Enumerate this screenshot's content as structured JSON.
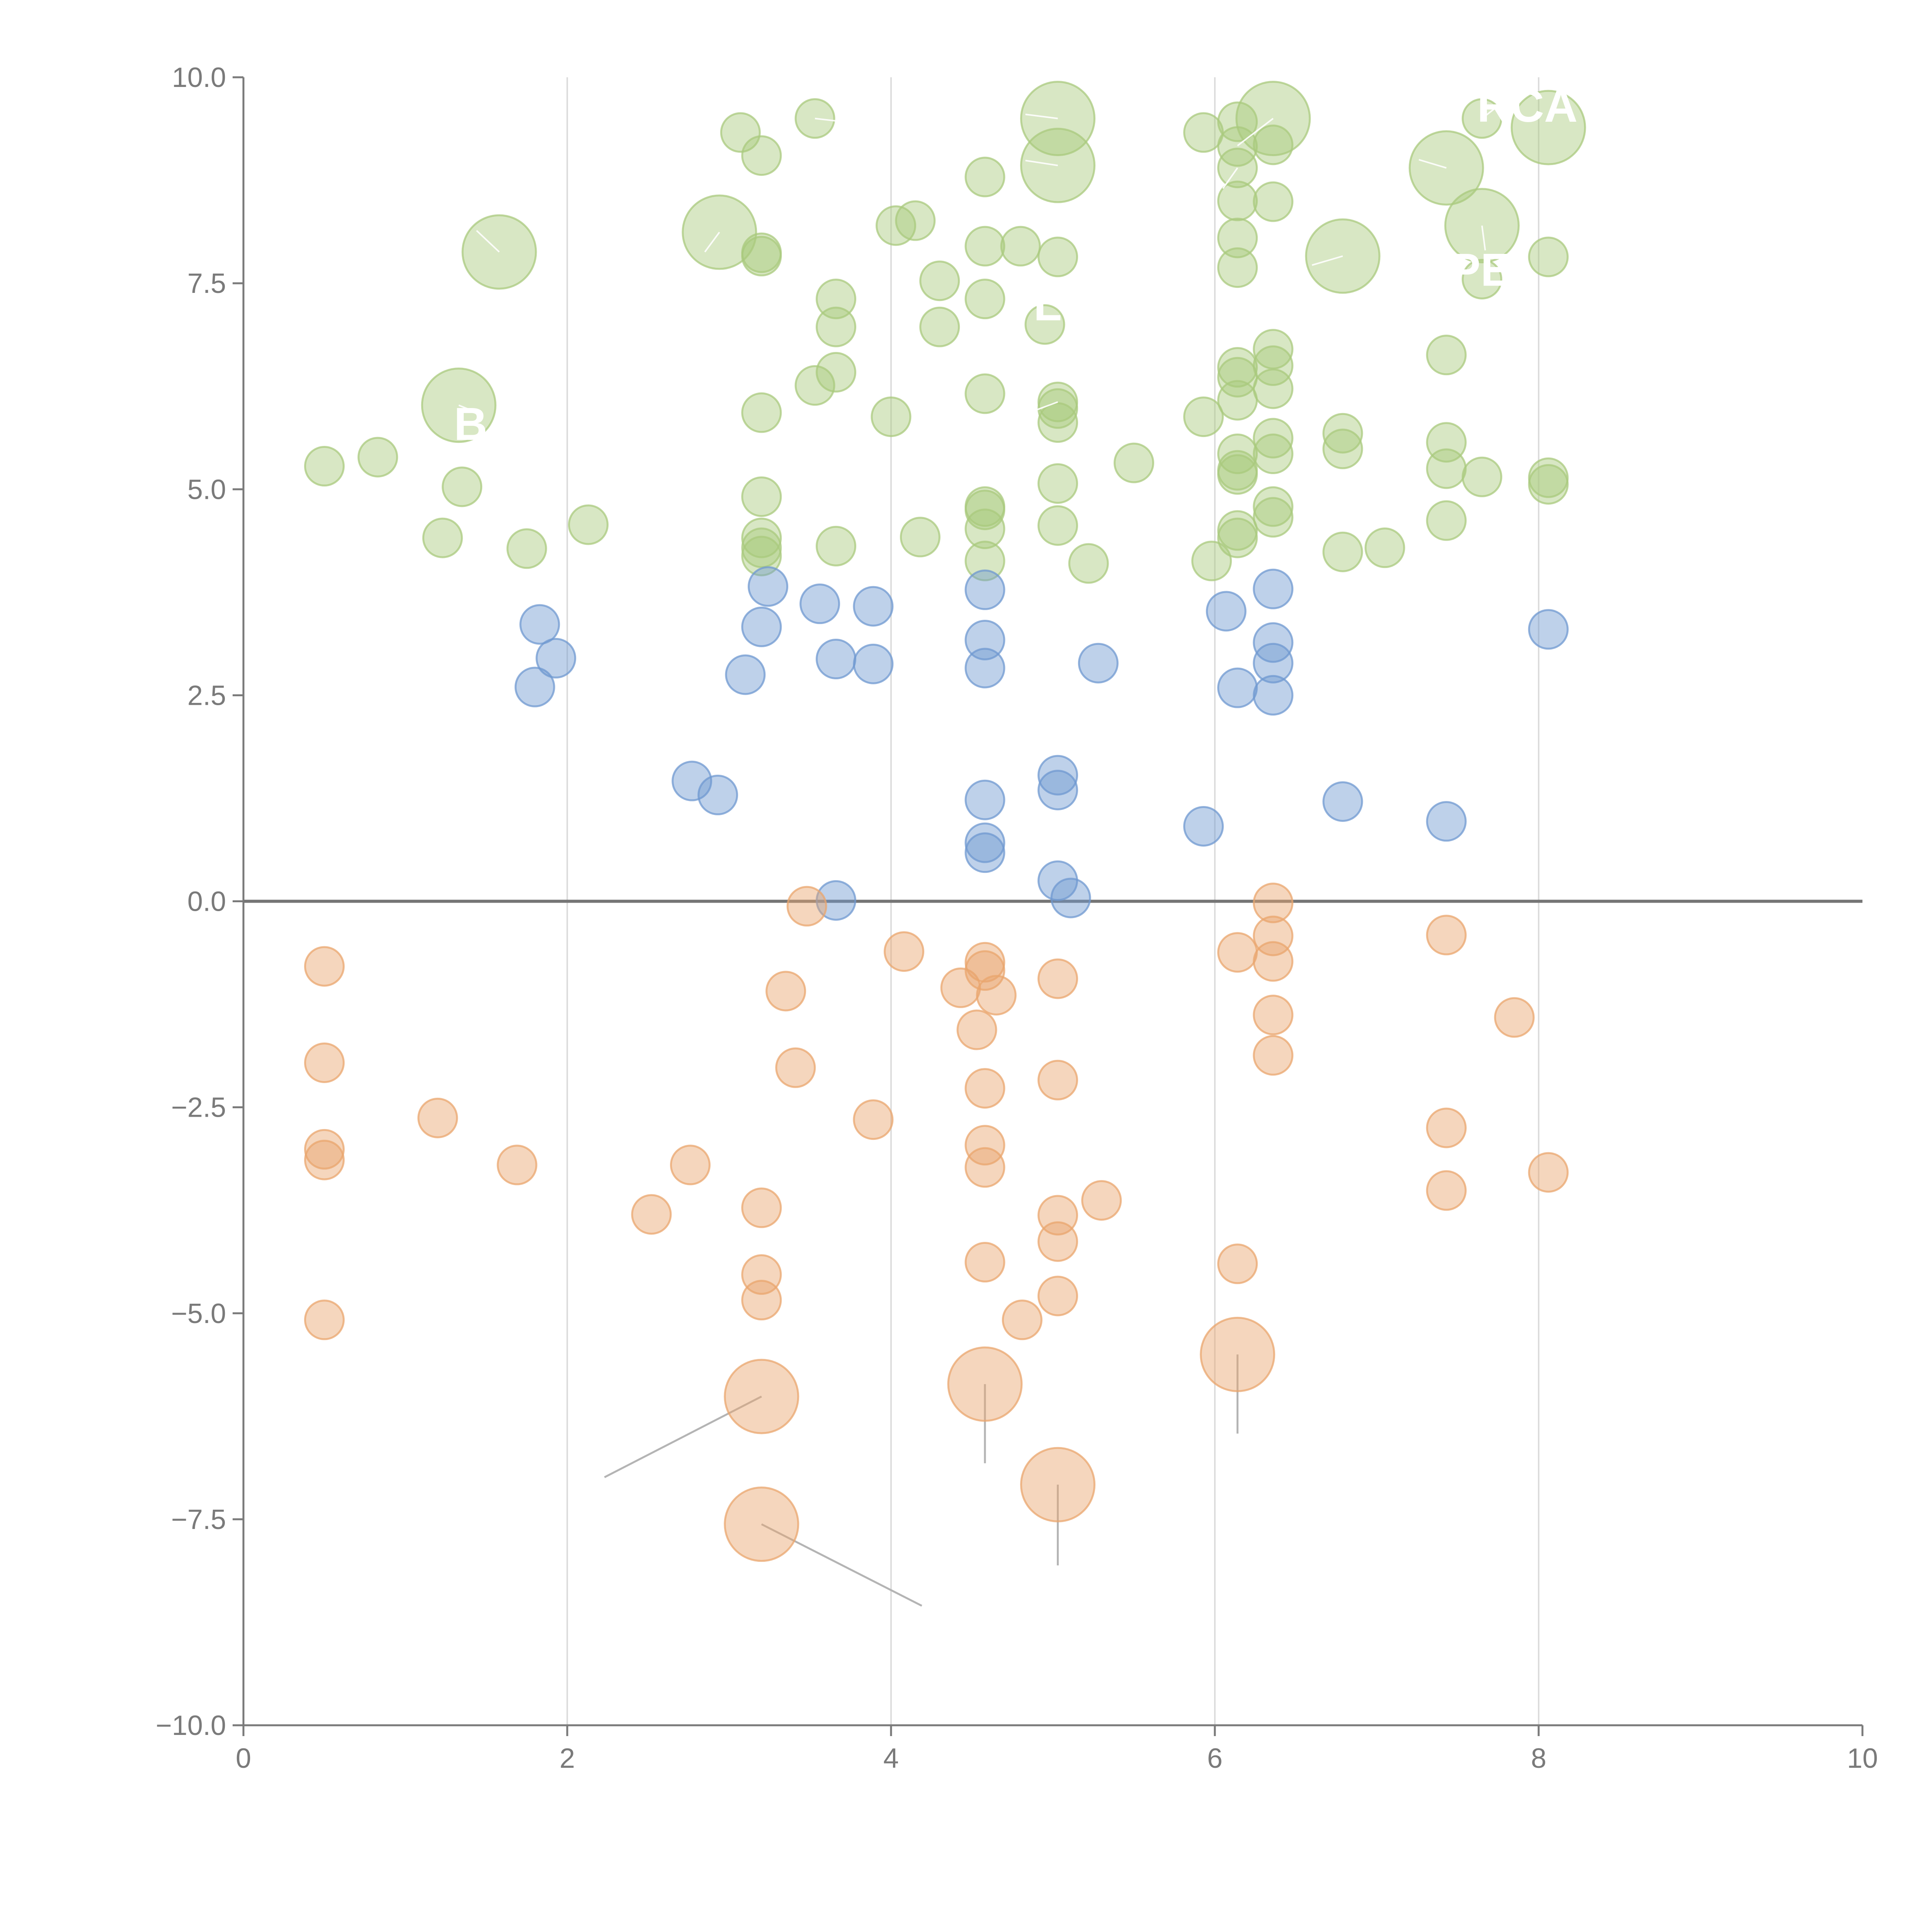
{
  "chart_data": {
    "type": "scatter",
    "title": "",
    "xlabel": "",
    "ylabel": "",
    "xlim": [
      0,
      10
    ],
    "ylim": [
      -10,
      10
    ],
    "x_ticks": [
      "0",
      "2",
      "4",
      "6",
      "8",
      "10"
    ],
    "y_ticks": [
      "10.0",
      "7.5",
      "5.0",
      "2.5",
      "0.0",
      "−2.5",
      "−5.0",
      "−7.5",
      "−10.0"
    ],
    "x_tick_values": [
      0,
      2,
      4,
      6,
      8,
      10
    ],
    "y_tick_values": [
      10,
      7.5,
      5,
      2.5,
      0,
      -2.5,
      -5,
      -7.5,
      -10
    ],
    "vertical_gridlines": [
      2,
      4,
      6,
      8
    ],
    "horizontal_reference_line": 0,
    "grid": true,
    "legend": "none",
    "marker_opacity": 0.45,
    "series": [
      {
        "color": "#a9c97d",
        "points": [
          [
            0.5,
            5.28
          ],
          [
            0.83,
            5.39
          ],
          [
            1.23,
            4.41
          ],
          [
            1.35,
            5.03
          ],
          [
            1.75,
            4.28
          ],
          [
            2.13,
            4.57
          ],
          [
            3.07,
            9.33
          ],
          [
            3.2,
            9.05
          ],
          [
            3.53,
            9.5
          ],
          [
            3.2,
            7.87
          ],
          [
            3.2,
            7.83
          ],
          [
            3.2,
            5.93
          ],
          [
            3.2,
            4.91
          ],
          [
            3.2,
            4.41
          ],
          [
            3.2,
            4.29
          ],
          [
            3.2,
            4.19
          ],
          [
            3.53,
            6.26
          ],
          [
            3.66,
            7.31
          ],
          [
            3.66,
            6.97
          ],
          [
            3.66,
            6.42
          ],
          [
            3.66,
            4.31
          ],
          [
            4.0,
            5.88
          ],
          [
            4.03,
            8.2
          ],
          [
            4.15,
            8.26
          ],
          [
            4.18,
            4.42
          ],
          [
            4.3,
            7.53
          ],
          [
            4.3,
            6.97
          ],
          [
            4.58,
            8.79
          ],
          [
            4.58,
            7.95
          ],
          [
            4.58,
            7.31
          ],
          [
            4.58,
            6.16
          ],
          [
            4.58,
            4.79
          ],
          [
            4.58,
            4.75
          ],
          [
            4.58,
            4.52
          ],
          [
            4.58,
            4.13
          ],
          [
            4.8,
            7.95
          ],
          [
            4.95,
            7.0
          ],
          [
            5.03,
            7.82
          ],
          [
            5.03,
            6.06
          ],
          [
            5.03,
            5.98
          ],
          [
            5.03,
            5.81
          ],
          [
            5.03,
            5.07
          ],
          [
            5.03,
            4.56
          ],
          [
            5.22,
            4.1
          ],
          [
            5.5,
            5.32
          ],
          [
            5.93,
            9.33
          ],
          [
            5.93,
            5.88
          ],
          [
            5.98,
            4.13
          ],
          [
            6.14,
            9.46
          ],
          [
            6.14,
            9.16
          ],
          [
            6.14,
            8.9
          ],
          [
            6.14,
            8.5
          ],
          [
            6.14,
            8.05
          ],
          [
            6.14,
            7.69
          ],
          [
            6.14,
            6.48
          ],
          [
            6.14,
            6.36
          ],
          [
            6.14,
            6.08
          ],
          [
            6.14,
            5.43
          ],
          [
            6.14,
            5.23
          ],
          [
            6.14,
            5.18
          ],
          [
            6.14,
            4.5
          ],
          [
            6.14,
            4.41
          ],
          [
            6.36,
            9.18
          ],
          [
            6.36,
            8.49
          ],
          [
            6.36,
            6.7
          ],
          [
            6.36,
            6.5
          ],
          [
            6.36,
            6.22
          ],
          [
            6.36,
            5.62
          ],
          [
            6.36,
            5.43
          ],
          [
            6.36,
            4.79
          ],
          [
            6.36,
            4.66
          ],
          [
            6.79,
            5.68
          ],
          [
            6.79,
            5.49
          ],
          [
            6.79,
            4.24
          ],
          [
            7.05,
            4.29
          ],
          [
            7.43,
            6.63
          ],
          [
            7.43,
            5.57
          ],
          [
            7.43,
            5.25
          ],
          [
            7.43,
            4.62
          ],
          [
            7.65,
            9.5
          ],
          [
            7.65,
            5.15
          ],
          [
            7.65,
            7.55
          ],
          [
            8.06,
            7.82
          ],
          [
            8.06,
            5.14
          ],
          [
            8.06,
            5.06
          ]
        ],
        "large_points": [
          [
            1.58,
            7.88
          ],
          [
            1.33,
            6.02
          ],
          [
            2.94,
            8.12
          ],
          [
            5.03,
            9.5
          ],
          [
            5.03,
            8.93
          ],
          [
            6.36,
            9.5
          ],
          [
            6.79,
            7.83
          ],
          [
            7.43,
            8.9
          ],
          [
            7.65,
            8.2
          ],
          [
            8.06,
            9.39
          ]
        ]
      },
      {
        "color": "#6f98d0",
        "points": [
          [
            1.83,
            3.36
          ],
          [
            1.93,
            2.95
          ],
          [
            1.8,
            2.6
          ],
          [
            2.77,
            1.46
          ],
          [
            2.93,
            1.29
          ],
          [
            3.1,
            2.75
          ],
          [
            3.2,
            3.33
          ],
          [
            3.24,
            3.82
          ],
          [
            3.56,
            3.61
          ],
          [
            3.66,
            2.94
          ],
          [
            3.66,
            0.01
          ],
          [
            3.89,
            3.58
          ],
          [
            3.89,
            2.88
          ],
          [
            4.58,
            3.78
          ],
          [
            4.58,
            3.17
          ],
          [
            4.58,
            2.83
          ],
          [
            4.58,
            1.23
          ],
          [
            4.58,
            0.71
          ],
          [
            4.58,
            0.59
          ],
          [
            5.03,
            1.53
          ],
          [
            5.03,
            1.35
          ],
          [
            5.03,
            0.25
          ],
          [
            5.11,
            0.04
          ],
          [
            5.28,
            2.89
          ],
          [
            5.93,
            0.91
          ],
          [
            6.07,
            3.52
          ],
          [
            6.14,
            2.59
          ],
          [
            6.36,
            3.79
          ],
          [
            6.36,
            3.14
          ],
          [
            6.36,
            2.89
          ],
          [
            6.36,
            2.5
          ],
          [
            6.79,
            1.21
          ],
          [
            7.43,
            0.97
          ],
          [
            8.06,
            3.3
          ]
        ]
      },
      {
        "color": "#e9a56d",
        "points": [
          [
            0.5,
            -0.79
          ],
          [
            0.5,
            -1.96
          ],
          [
            0.5,
            -3.01
          ],
          [
            0.5,
            -3.14
          ],
          [
            0.5,
            -5.08
          ],
          [
            1.2,
            -2.63
          ],
          [
            1.69,
            -3.2
          ],
          [
            2.52,
            -3.8
          ],
          [
            2.76,
            -3.2
          ],
          [
            3.2,
            -3.72
          ],
          [
            3.2,
            -4.53
          ],
          [
            3.2,
            -4.84
          ],
          [
            3.35,
            -1.09
          ],
          [
            3.41,
            -2.02
          ],
          [
            3.48,
            -0.06
          ],
          [
            3.89,
            -2.65
          ],
          [
            4.08,
            -0.61
          ],
          [
            4.43,
            -1.05
          ],
          [
            4.53,
            -1.56
          ],
          [
            4.58,
            -0.74
          ],
          [
            4.58,
            -0.84
          ],
          [
            4.58,
            -2.27
          ],
          [
            4.58,
            -2.96
          ],
          [
            4.58,
            -3.23
          ],
          [
            4.58,
            -4.38
          ],
          [
            4.65,
            -1.14
          ],
          [
            4.81,
            -5.08
          ],
          [
            5.03,
            -0.94
          ],
          [
            5.03,
            -2.17
          ],
          [
            5.03,
            -3.81
          ],
          [
            5.03,
            -4.13
          ],
          [
            5.03,
            -4.79
          ],
          [
            5.3,
            -3.63
          ],
          [
            6.14,
            -0.62
          ],
          [
            6.14,
            -4.4
          ],
          [
            6.36,
            -0.02
          ],
          [
            6.36,
            -0.42
          ],
          [
            6.36,
            -0.73
          ],
          [
            6.36,
            -1.38
          ],
          [
            6.36,
            -1.87
          ],
          [
            7.43,
            -0.41
          ],
          [
            7.43,
            -2.75
          ],
          [
            7.43,
            -3.51
          ],
          [
            7.85,
            -1.41
          ],
          [
            8.06,
            -3.29
          ]
        ],
        "large_points": [
          [
            3.2,
            -6.01
          ],
          [
            3.2,
            -7.56
          ],
          [
            4.58,
            -5.86
          ],
          [
            5.03,
            -7.08
          ],
          [
            6.14,
            -5.5
          ]
        ]
      }
    ],
    "leader_lines": [
      {
        "from": [
          3.2,
          -6.01
        ],
        "to": [
          2.23,
          -6.99
        ]
      },
      {
        "from": [
          3.2,
          -7.56
        ],
        "to": [
          4.19,
          -8.55
        ]
      },
      {
        "from": [
          4.58,
          -5.86
        ],
        "to": [
          4.58,
          -6.82
        ]
      },
      {
        "from": [
          5.03,
          -7.08
        ],
        "to": [
          5.03,
          -8.06
        ]
      },
      {
        "from": [
          6.14,
          -5.5
        ],
        "to": [
          6.14,
          -6.46
        ]
      }
    ],
    "light_leader_lines": [
      {
        "from": [
          1.58,
          7.88
        ],
        "to": [
          1.44,
          8.14
        ]
      },
      {
        "from": [
          1.33,
          6.02
        ],
        "to": [
          1.48,
          5.9
        ]
      },
      {
        "from": [
          2.94,
          8.12
        ],
        "to": [
          2.85,
          7.88
        ]
      },
      {
        "from": [
          3.53,
          9.5
        ],
        "to": [
          3.75,
          9.45
        ]
      },
      {
        "from": [
          5.03,
          9.5
        ],
        "to": [
          4.83,
          9.55
        ]
      },
      {
        "from": [
          5.03,
          8.93
        ],
        "to": [
          4.83,
          8.99
        ]
      },
      {
        "from": [
          5.03,
          6.06
        ],
        "to": [
          4.88,
          5.95
        ]
      },
      {
        "from": [
          6.36,
          9.5
        ],
        "to": [
          6.14,
          9.17
        ]
      },
      {
        "from": [
          6.14,
          8.9
        ],
        "to": [
          6.05,
          8.65
        ]
      },
      {
        "from": [
          6.79,
          7.83
        ],
        "to": [
          6.6,
          7.72
        ]
      },
      {
        "from": [
          7.43,
          8.9
        ],
        "to": [
          7.26,
          9.0
        ]
      },
      {
        "from": [
          7.65,
          8.2
        ],
        "to": [
          7.67,
          7.9
        ]
      },
      {
        "from": [
          7.65,
          9.5
        ],
        "to": [
          7.78,
          9.7
        ]
      }
    ],
    "visible_label_text": [
      {
        "text": "RCA",
        "x": 7.62,
        "y": 9.46
      },
      {
        "text": "PE",
        "x": 7.45,
        "y": 7.47
      },
      {
        "text": "L",
        "x": 4.88,
        "y": 7.05
      },
      {
        "text": "B",
        "x": 1.3,
        "y": 5.6
      },
      {
        "text": "\\/",
        "x": 4.9,
        "y": -6.25
      }
    ],
    "label_color": "#ffffff"
  }
}
